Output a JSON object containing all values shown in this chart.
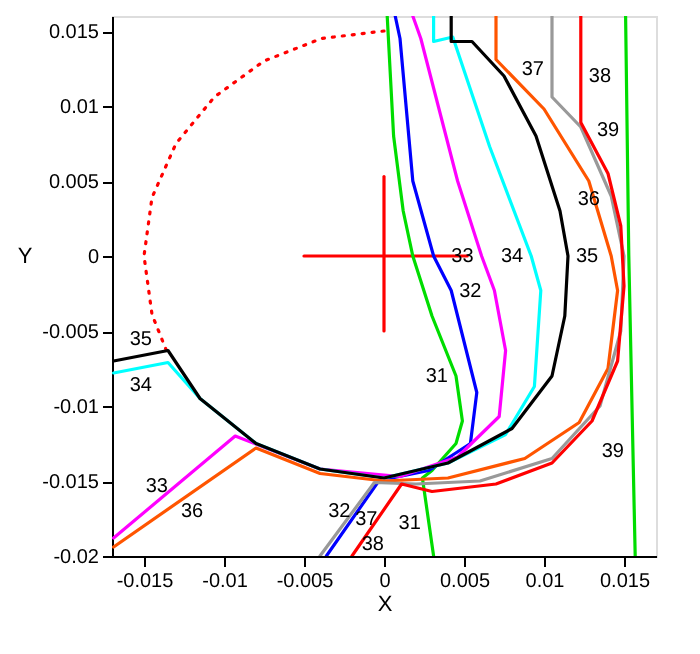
{
  "chart_data": {
    "type": "line",
    "xlabel": "X",
    "ylabel": "Y",
    "xlim": [
      -0.017,
      0.017
    ],
    "ylim": [
      -0.02,
      0.016
    ],
    "xticks": [
      -0.015,
      -0.01,
      -0.005,
      0,
      0.005,
      0.01,
      0.015
    ],
    "yticks": [
      -0.02,
      -0.015,
      -0.01,
      -0.005,
      0,
      0.005,
      0.01,
      0.015
    ],
    "grid": false,
    "series": [
      {
        "color": "#ff0000",
        "line_style": "dotted",
        "x": [
          0,
          -0.0039,
          -0.0075,
          -0.0106,
          -0.013,
          -0.0145,
          -0.015,
          -0.0145,
          -0.0136
        ],
        "values": [
          0.015,
          0.0145,
          0.013,
          0.0106,
          0.0075,
          0.0039,
          0,
          -0.0039,
          -0.0063
        ]
      },
      {
        "color": "#ff0000",
        "x": [
          -0.005,
          0.0052
        ],
        "values": [
          0,
          0
        ]
      },
      {
        "color": "#ff0000",
        "x": [
          0,
          0
        ],
        "values": [
          0.0053,
          -0.005
        ]
      },
      {
        "color": "#00dd00",
        "x": [
          0.0002,
          0.0006,
          0.0012,
          0.0018,
          0.003,
          0.0045,
          0.0049,
          0.0045,
          0.003,
          0.0024,
          0.0031
        ],
        "values": [
          0.016,
          0.008,
          0.003,
          0,
          -0.004,
          -0.008,
          -0.011,
          -0.0125,
          -0.0143,
          -0.0148,
          -0.02
        ]
      },
      {
        "color": "#0000ff",
        "x": [
          0.0007,
          0.001,
          0.0018,
          0.0031,
          0.0042,
          0.0058,
          0.0054,
          0.0028,
          0.0005,
          -0.0002,
          -0.0036
        ],
        "values": [
          0.016,
          0.0145,
          0.005,
          0,
          -0.0023,
          -0.0091,
          -0.0125,
          -0.0143,
          -0.0148,
          -0.0148,
          -0.02
        ]
      },
      {
        "color": "#ff00ff",
        "x": [
          0.0018,
          0.0023,
          0.0046,
          0.0061,
          0.0069,
          0.0076,
          0.0072,
          0.0046,
          0.001,
          -0.004,
          -0.0093,
          -0.0169
        ],
        "values": [
          0.016,
          0.0145,
          0.005,
          0,
          -0.0023,
          -0.0063,
          -0.0107,
          -0.0134,
          -0.0147,
          -0.0142,
          -0.012,
          -0.0188
        ]
      },
      {
        "color": "#00ffff",
        "x": [
          0.0031,
          0.0031,
          0.0043,
          0.0066,
          0.0092,
          0.0098,
          0.0094,
          0.0076,
          0.004,
          0,
          -0.004,
          -0.008,
          -0.0115,
          -0.0135,
          -0.0169
        ],
        "values": [
          0.016,
          0.0143,
          0.0146,
          0.0073,
          0,
          -0.0023,
          -0.0087,
          -0.0119,
          -0.0138,
          -0.0148,
          -0.0142,
          -0.0125,
          -0.0095,
          -0.0071,
          -0.0078
        ]
      },
      {
        "color": "#000000",
        "x": [
          0.0042,
          0.0042,
          0.0055,
          0.0075,
          0.0095,
          0.011,
          0.0115,
          0.0113,
          0.0105,
          0.008,
          0.004,
          0,
          -0.004,
          -0.008,
          -0.0115,
          -0.0135,
          -0.0169
        ],
        "values": [
          0.016,
          0.0143,
          0.0143,
          0.012,
          0.008,
          0.003,
          0,
          -0.004,
          -0.008,
          -0.0115,
          -0.0138,
          -0.0148,
          -0.0142,
          -0.0125,
          -0.0095,
          -0.0063,
          -0.007
        ]
      },
      {
        "color": "#ff5500",
        "x": [
          0.007,
          0.007,
          0.01,
          0.0128,
          0.0142,
          0.0146,
          0.014,
          0.0122,
          0.0088,
          0.004,
          0,
          -0.004,
          -0.008,
          -0.0169
        ],
        "values": [
          0.016,
          0.0131,
          0.0098,
          0.005,
          0,
          -0.0023,
          -0.0075,
          -0.0111,
          -0.0135,
          -0.0148,
          -0.015,
          -0.0145,
          -0.0128,
          -0.0194
        ]
      },
      {
        "color": "#999999",
        "x": [
          0.0105,
          0.0105,
          0.0123,
          0.0142,
          0.015,
          0.0148,
          0.0135,
          0.0105,
          0.006,
          0.002,
          -0.0006,
          -0.004
        ],
        "values": [
          0.016,
          0.0106,
          0.0086,
          0.004,
          0,
          -0.005,
          -0.01,
          -0.0135,
          -0.015,
          -0.0152,
          -0.0151,
          -0.02
        ]
      },
      {
        "color": "#ff0000",
        "x": [
          0.0123,
          0.0123,
          0.014,
          0.0148,
          0.015,
          0.0146,
          0.013,
          0.0105,
          0.007,
          0.003,
          0.0011,
          -0.002
        ],
        "values": [
          0.016,
          0.0089,
          0.0055,
          0.002,
          -0.002,
          -0.007,
          -0.011,
          -0.0138,
          -0.0152,
          -0.0157,
          -0.0152,
          -0.02
        ]
      },
      {
        "color": "#00dd00",
        "x": [
          0.0151,
          0.0153,
          0.0157
        ],
        "values": [
          0.016,
          0,
          -0.02
        ]
      }
    ],
    "annotations": [
      {
        "text": "37",
        "x": 0.0105,
        "y": 0.0125
      },
      {
        "text": "38",
        "x": 0.0123,
        "y": 0.012
      },
      {
        "text": "39",
        "x": 0.0152,
        "y": 0.0084
      },
      {
        "text": "36",
        "x": 0.0128,
        "y": 0.005
      },
      {
        "text": "35",
        "x": 0.0115,
        "y": 0
      },
      {
        "text": "34",
        "x": 0.0092,
        "y": 0
      },
      {
        "text": "33",
        "x": 0.0061,
        "y": 0
      },
      {
        "text": "32",
        "x": 0.0042,
        "y": -0.0023
      },
      {
        "text": "31",
        "x": 0.0045,
        "y": -0.008
      },
      {
        "text": "35",
        "x": -0.0152,
        "y": -0.0067
      },
      {
        "text": "34",
        "x": -0.0152,
        "y": -0.0074
      },
      {
        "text": "33",
        "x": -0.013,
        "y": -0.0153
      },
      {
        "text": "36",
        "x": -0.012,
        "y": -0.0158
      },
      {
        "text": "39",
        "x": 0.0155,
        "y": -0.013
      },
      {
        "text": "31",
        "x": 0.0028,
        "y": -0.0178
      },
      {
        "text": "38",
        "x": -0.0007,
        "y": -0.018
      },
      {
        "text": "37",
        "x": -0.0023,
        "y": -0.0175
      },
      {
        "text": "32",
        "x": -0.0016,
        "y": -0.017
      }
    ]
  }
}
